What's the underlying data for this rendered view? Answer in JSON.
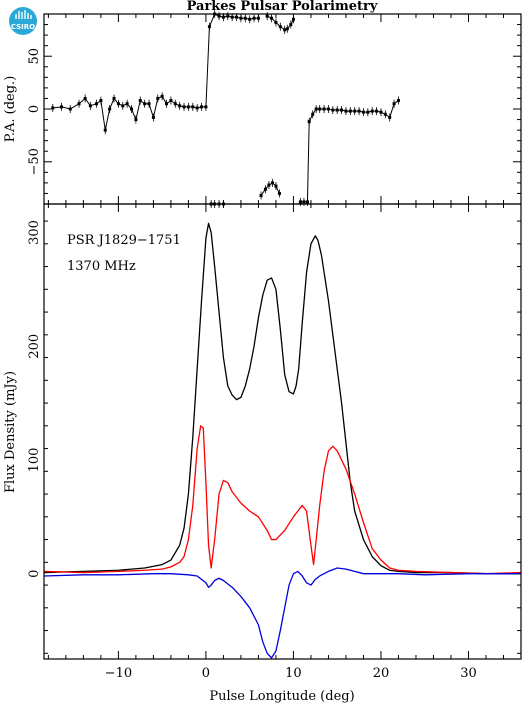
{
  "title": "Parkes Pulsar Polarimetry",
  "logo": {
    "text": "CSIRO",
    "color": "#2aa9d8"
  },
  "chart_data": [
    {
      "type": "scatter",
      "panel": "position-angle",
      "ylabel": "P.A. (deg.)",
      "xlim": [
        -18.5,
        36
      ],
      "ylim": [
        -90,
        90
      ],
      "yticks": [
        -50,
        0,
        50
      ],
      "ytick_labels": [
        "−50",
        "0",
        "50"
      ],
      "color": "#000000",
      "series": [
        {
          "x": [
            -17.5,
            -16.5,
            -15.5,
            -14.5,
            -13.8,
            -13.2,
            -12.5,
            -12.0,
            -11.5,
            -11.0,
            -10.5,
            -10.0,
            -9.5,
            -9.0,
            -8.5,
            -8.0,
            -7.5,
            -7.0,
            -6.5,
            -6.0,
            -5.5,
            -5.0,
            -4.5,
            -4.0,
            -3.5,
            -3.0,
            -2.5,
            -2.0,
            -1.5,
            -1.0,
            -0.5,
            0.0
          ],
          "y": [
            1,
            2,
            0,
            5,
            10,
            3,
            5,
            8,
            -20,
            0,
            10,
            5,
            3,
            5,
            0,
            -10,
            8,
            5,
            5,
            -8,
            10,
            12,
            5,
            8,
            5,
            3,
            2,
            2,
            2,
            1,
            2,
            2
          ]
        },
        {
          "x": [
            0.4
          ],
          "y": [
            78
          ]
        },
        {
          "x": [
            1.0,
            1.5,
            2.0,
            2.5,
            3.0,
            3.5,
            4.0,
            4.5,
            5.0,
            5.5,
            6.0
          ],
          "y": [
            90,
            88,
            87,
            88,
            87,
            87,
            86,
            86,
            85,
            86,
            86
          ]
        },
        {
          "x": [
            7.0,
            7.5,
            8.0,
            8.5,
            9.0,
            9.3,
            9.7,
            10.0
          ],
          "y": [
            88,
            86,
            82,
            78,
            75,
            76,
            80,
            85
          ]
        },
        {
          "x": [
            0.6,
            1.0,
            1.5,
            2.0
          ],
          "y": [
            -90,
            -90,
            -90,
            -90
          ]
        },
        {
          "x": [
            6.3,
            6.8,
            7.2,
            7.6,
            8.0,
            8.4
          ],
          "y": [
            -82,
            -76,
            -72,
            -70,
            -73,
            -80
          ]
        },
        {
          "x": [
            10.8,
            11.2,
            11.6
          ],
          "y": [
            -88,
            -88,
            -88
          ]
        },
        {
          "x": [
            11.8,
            12.2,
            12.6,
            13.0,
            13.5,
            14.0,
            14.5,
            15.0,
            15.5,
            16.0,
            16.5,
            17.0,
            17.5,
            18.0,
            18.5,
            19.0,
            19.5,
            20.0,
            20.5,
            21.0,
            21.5,
            22.0
          ],
          "y": [
            -12,
            -5,
            0,
            0,
            0,
            0,
            -1,
            -1,
            -1,
            -2,
            -2,
            -2,
            -2,
            -3,
            -3,
            -2,
            -2,
            -3,
            -5,
            -8,
            5,
            8
          ]
        }
      ]
    },
    {
      "type": "line",
      "panel": "flux-density",
      "xlabel": "Pulse Longitude (deg)",
      "ylabel": "Flux Density (mJy)",
      "annotations": [
        "PSR J1829−1751",
        "1370 MHz"
      ],
      "xlim": [
        -18.5,
        36
      ],
      "ylim": [
        -75,
        325
      ],
      "xticks": [
        -10,
        0,
        10,
        20,
        30
      ],
      "xtick_labels": [
        "−10",
        "0",
        "10",
        "20",
        "30"
      ],
      "yticks": [
        0,
        100,
        200,
        300
      ],
      "ytick_labels": [
        "0",
        "100",
        "200",
        "300"
      ],
      "series": [
        {
          "color": "#000000",
          "x": [
            -18.5,
            -14,
            -10,
            -7,
            -5,
            -4,
            -3,
            -2.5,
            -2,
            -1.5,
            -1,
            -0.5,
            0,
            0.3,
            0.6,
            1,
            1.5,
            2,
            2.5,
            3,
            3.5,
            4,
            4.5,
            5,
            5.5,
            6,
            6.5,
            7,
            7.5,
            8,
            8.5,
            9,
            9.5,
            10,
            10.3,
            10.6,
            11,
            11.5,
            12,
            12.5,
            12.8,
            13.2,
            13.6,
            14,
            14.5,
            15,
            15.5,
            16,
            16.5,
            17,
            18,
            19,
            20,
            21,
            22,
            24,
            28,
            32,
            36
          ],
          "y": [
            1,
            2,
            3,
            5,
            8,
            12,
            25,
            40,
            70,
            120,
            180,
            240,
            295,
            308,
            300,
            270,
            230,
            190,
            165,
            157,
            153,
            155,
            165,
            180,
            200,
            225,
            245,
            258,
            260,
            250,
            215,
            175,
            160,
            158,
            165,
            180,
            220,
            265,
            290,
            297,
            293,
            280,
            260,
            240,
            210,
            180,
            150,
            115,
            80,
            55,
            30,
            15,
            7,
            3,
            2,
            1,
            1,
            0,
            0
          ]
        },
        {
          "color": "#ff0000",
          "x": [
            -18.5,
            -14,
            -10,
            -7,
            -5,
            -4,
            -3,
            -2.5,
            -2,
            -1.5,
            -1,
            -0.6,
            -0.3,
            0,
            0.3,
            0.6,
            1,
            1.5,
            2,
            2.5,
            3,
            4,
            5,
            6,
            7,
            7.5,
            8,
            9,
            10,
            10.5,
            11,
            11.5,
            12,
            12.3,
            12.6,
            13,
            13.5,
            14,
            14.5,
            15,
            16,
            17,
            18,
            19,
            20,
            21,
            22,
            24,
            28,
            32,
            36
          ],
          "y": [
            2,
            1,
            2,
            3,
            4,
            6,
            10,
            15,
            30,
            60,
            110,
            130,
            128,
            80,
            25,
            5,
            30,
            70,
            82,
            80,
            72,
            62,
            55,
            50,
            38,
            30,
            30,
            38,
            50,
            55,
            60,
            55,
            25,
            8,
            30,
            60,
            90,
            108,
            112,
            108,
            92,
            70,
            45,
            22,
            12,
            5,
            3,
            2,
            1,
            0,
            1
          ]
        },
        {
          "color": "#0000dd",
          "x": [
            -18.5,
            -14,
            -10,
            -6,
            -4,
            -2,
            -1,
            0,
            0.3,
            0.6,
            1,
            1.5,
            2,
            3,
            4,
            5,
            6,
            6.5,
            7,
            7.5,
            8,
            8.5,
            9,
            9.5,
            10,
            10.5,
            11,
            11.5,
            12,
            12.5,
            13,
            14,
            15,
            16,
            17,
            18,
            20,
            22,
            25,
            30,
            36
          ],
          "y": [
            -2,
            -1,
            -1,
            0,
            0,
            -1,
            -2,
            -8,
            -12,
            -10,
            -6,
            -4,
            -6,
            -12,
            -20,
            -30,
            -45,
            -60,
            -70,
            -74,
            -68,
            -50,
            -30,
            -10,
            0,
            2,
            -2,
            -8,
            -10,
            -5,
            -2,
            2,
            5,
            4,
            2,
            0,
            0,
            0,
            -1,
            0,
            0
          ]
        }
      ]
    }
  ]
}
